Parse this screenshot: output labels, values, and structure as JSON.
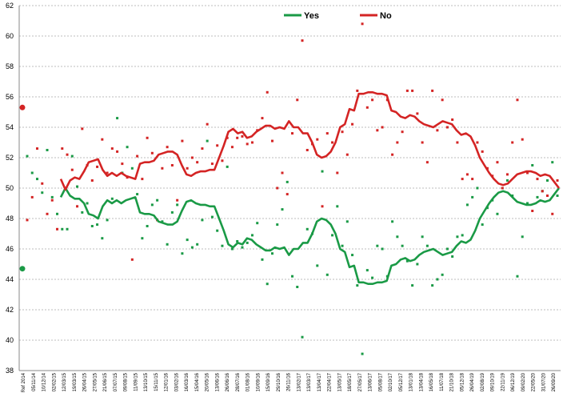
{
  "chart_data": {
    "type": "line",
    "title": "",
    "xlabel": "",
    "ylabel": "",
    "ylim": [
      38,
      62
    ],
    "yticks": [
      38,
      40,
      42,
      44,
      46,
      48,
      50,
      52,
      54,
      56,
      58,
      60,
      62
    ],
    "grid": true,
    "legend_position": "top-center",
    "x_labels": [
      "Ref 2014",
      "05/11/14",
      "10/12/14",
      "02/02/15",
      "12/03/15",
      "19/03/15",
      "26/04/15",
      "27/05/15",
      "21/06/15",
      "07/07/15",
      "09/08/15",
      "11/09/15",
      "13/10/15",
      "15/11/15",
      "12/01/16",
      "03/02/16",
      "16/03/16",
      "15/04/16",
      "20/05/16",
      "13/06/16",
      "26/06/16",
      "28/07/16",
      "01/08/16",
      "10/09/16",
      "15/09/16",
      "29/10/16",
      "26/11/16",
      "13/02/17",
      "13/03/17",
      "13/04/17",
      "22/04/17",
      "13/05/17",
      "18/05/17",
      "27/05/17",
      "13/06/17",
      "05/08/17",
      "02/10/17",
      "05/12/17",
      "13/01/18",
      "13/04/18",
      "16/05/18",
      "11/07/18",
      "21/10/18",
      "05/12/18",
      "26/04/19",
      "02/08/19",
      "09/10/19",
      "22/11/19",
      "06/12/19",
      "09/02/20",
      "22/05/20",
      "31/07/20",
      "26/09/20"
    ],
    "series": [
      {
        "name": "Yes",
        "color": "#1a9a46",
        "trend": [
          49.4,
          50.0,
          49.5,
          49.3,
          49.3,
          49.0,
          48.3,
          48.2,
          48.0,
          48.8,
          49.2,
          49.0,
          49.2,
          49.0,
          49.2,
          49.3,
          49.4,
          48.4,
          48.3,
          48.3,
          48.2,
          47.8,
          47.7,
          47.6,
          47.6,
          47.8,
          48.5,
          49.1,
          49.2,
          49.0,
          48.9,
          48.9,
          48.8,
          48.8,
          48.0,
          47.2,
          46.3,
          46.1,
          46.4,
          46.3,
          46.7,
          46.6,
          46.3,
          46.1,
          45.9,
          45.9,
          46.1,
          46.0,
          46.1,
          45.6,
          46.0,
          46.0,
          46.4,
          46.4,
          47.0,
          47.8,
          48.0,
          47.9,
          47.6,
          47.0,
          46.0,
          45.8,
          44.8,
          44.9,
          43.8,
          43.8,
          43.7,
          43.7,
          43.8,
          43.8,
          43.9,
          44.9,
          45.0,
          45.3,
          45.4,
          45.2,
          45.3,
          45.6,
          45.8,
          45.9,
          46.0,
          45.8,
          45.6,
          45.7,
          45.8,
          46.2,
          46.5,
          46.4,
          46.6,
          47.2,
          48.0,
          48.5,
          49.0,
          49.4,
          49.7,
          49.8,
          49.7,
          49.4,
          49.1,
          49.0,
          48.9,
          48.9,
          49.0,
          49.2,
          49.1,
          49.2,
          49.6,
          50.0
        ],
        "polls": [
          52.1,
          51.0,
          50.6,
          49.7,
          52.5,
          49.4,
          48.3,
          47.3,
          47.3,
          52.1,
          50.1,
          48.4,
          49.0,
          47.5,
          47.6,
          46.7,
          47.9,
          49.3,
          54.6,
          51.0,
          52.7,
          51.3,
          49.6,
          46.7,
          47.5,
          48.9,
          49.2,
          47.8,
          46.3,
          48.4,
          48.9,
          45.7,
          46.6,
          46.1,
          46.3,
          47.9,
          53.1,
          48.1,
          47.2,
          46.2,
          51.4,
          46.0,
          46.5,
          46.1,
          46.4,
          46.9,
          47.7,
          45.3,
          43.7,
          45.7,
          47.6,
          48.6,
          50.4,
          44.2,
          43.5,
          40.2,
          47.3,
          47.0,
          44.9,
          51.1,
          44.3,
          46.9,
          48.8,
          46.2,
          47.8,
          45.6,
          43.6,
          39.1,
          44.6,
          44.1,
          46.2,
          46.0,
          44.2,
          47.8,
          46.8,
          46.2,
          45.2,
          43.6,
          45.0,
          46.8,
          46.2,
          43.6,
          44.0,
          44.3,
          46.0,
          45.5,
          46.8,
          46.9,
          48.9,
          49.4,
          50.0,
          47.6,
          48.7,
          49.2,
          48.3,
          50.0,
          50.5,
          49.5,
          44.2,
          46.8,
          49.0,
          51.5,
          49.4,
          49.8,
          50.5,
          51.7,
          49.5
        ]
      },
      {
        "name": "No",
        "color": "#d42424",
        "trend": [
          50.6,
          49.9,
          50.5,
          50.7,
          50.6,
          51.1,
          51.7,
          51.8,
          51.9,
          51.2,
          50.8,
          51.0,
          50.8,
          51.0,
          50.8,
          50.7,
          50.6,
          51.6,
          51.7,
          51.7,
          51.8,
          52.2,
          52.3,
          52.4,
          52.4,
          52.2,
          51.5,
          50.9,
          50.8,
          51.0,
          51.1,
          51.1,
          51.2,
          51.2,
          52.0,
          52.8,
          53.7,
          53.9,
          53.6,
          53.7,
          53.3,
          53.4,
          53.7,
          53.9,
          54.1,
          54.1,
          53.9,
          54.0,
          53.9,
          54.4,
          54.0,
          54.0,
          53.6,
          53.6,
          53.0,
          52.2,
          52.0,
          52.1,
          52.4,
          53.0,
          54.0,
          54.2,
          55.2,
          55.1,
          56.2,
          56.2,
          56.3,
          56.3,
          56.2,
          56.2,
          56.1,
          55.1,
          55.0,
          54.7,
          54.6,
          54.8,
          54.7,
          54.4,
          54.2,
          54.1,
          54.0,
          54.2,
          54.4,
          54.3,
          54.2,
          53.8,
          53.5,
          53.6,
          53.4,
          52.8,
          52.0,
          51.5,
          51.0,
          50.6,
          50.3,
          50.2,
          50.3,
          50.6,
          50.9,
          51.0,
          51.1,
          51.1,
          51.0,
          50.8,
          50.9,
          50.8,
          50.4,
          50.0
        ],
        "polls": [
          47.9,
          49.4,
          52.6,
          50.3,
          48.3,
          49.2,
          47.3,
          52.6,
          52.2,
          51.2,
          48.8,
          53.9,
          51.5,
          50.5,
          51.4,
          53.2,
          51.0,
          52.6,
          52.4,
          51.6,
          50.7,
          45.3,
          52.1,
          50.6,
          53.3,
          52.3,
          47.9,
          51.3,
          52.7,
          51.5,
          49.2,
          53.1,
          51.3,
          52.0,
          51.7,
          52.6,
          54.2,
          51.6,
          52.8,
          51.8,
          53.3,
          52.7,
          53.3,
          53.4,
          52.9,
          53.0,
          53.8,
          54.6,
          56.3,
          53.1,
          50.0,
          51.0,
          49.6,
          53.6,
          55.8,
          59.7,
          52.5,
          52.9,
          53.2,
          48.8,
          53.6,
          53.0,
          51.0,
          53.7,
          52.2,
          54.2,
          56.4,
          60.8,
          55.3,
          55.8,
          53.8,
          54.0,
          55.8,
          52.2,
          53.0,
          53.7,
          56.4,
          56.4,
          54.9,
          53.0,
          51.7,
          56.4,
          53.8,
          55.8,
          54.0,
          54.5,
          53.0,
          50.6,
          50.9,
          50.6,
          53.0,
          52.4,
          51.3,
          50.8,
          51.7,
          50.0,
          50.9,
          53.0,
          55.8,
          53.2,
          51.0,
          48.5,
          50.6,
          49.8,
          49.5,
          48.3,
          50.5
        ]
      }
    ],
    "referendum": {
      "label": "Ref 2014",
      "yes": 44.7,
      "no": 55.3
    }
  }
}
